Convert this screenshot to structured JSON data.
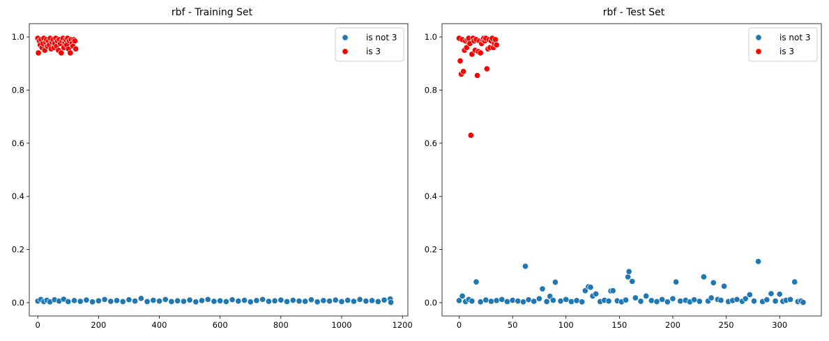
{
  "chart_data": [
    {
      "type": "scatter",
      "title": "rbf - Training Set",
      "xlabel": "",
      "ylabel": "",
      "xlim": [
        -28,
        1218
      ],
      "ylim": [
        -0.05,
        1.05
      ],
      "xticks": [
        0,
        200,
        400,
        600,
        800,
        1000,
        1200
      ],
      "yticks": [
        0.0,
        0.2,
        0.4,
        0.6,
        0.8,
        1.0
      ],
      "xtick_labels": [
        "0",
        "200",
        "400",
        "600",
        "800",
        "1000",
        "1200"
      ],
      "ytick_labels": [
        "0.0",
        "0.2",
        "0.4",
        "0.6",
        "0.8",
        "1.0"
      ],
      "grid": false,
      "legend_position": "top-right",
      "series": [
        {
          "name": "is not 3",
          "color": "#1f77b4",
          "x": [
            0,
            10,
            20,
            30,
            40,
            55,
            70,
            85,
            100,
            120,
            140,
            160,
            180,
            200,
            220,
            240,
            260,
            280,
            300,
            320,
            340,
            360,
            380,
            400,
            420,
            440,
            460,
            480,
            500,
            520,
            540,
            560,
            580,
            600,
            620,
            640,
            660,
            680,
            700,
            720,
            740,
            760,
            780,
            800,
            820,
            840,
            860,
            880,
            900,
            920,
            940,
            960,
            980,
            1000,
            1020,
            1040,
            1060,
            1080,
            1100,
            1120,
            1140,
            1160,
            1162
          ],
          "y": [
            0.006,
            0.012,
            0.004,
            0.009,
            0.003,
            0.011,
            0.006,
            0.013,
            0.004,
            0.008,
            0.005,
            0.01,
            0.003,
            0.007,
            0.012,
            0.005,
            0.008,
            0.004,
            0.011,
            0.006,
            0.016,
            0.004,
            0.009,
            0.006,
            0.012,
            0.004,
            0.007,
            0.005,
            0.01,
            0.003,
            0.008,
            0.012,
            0.005,
            0.007,
            0.004,
            0.011,
            0.006,
            0.009,
            0.003,
            0.008,
            0.012,
            0.005,
            0.007,
            0.01,
            0.004,
            0.009,
            0.006,
            0.005,
            0.011,
            0.003,
            0.008,
            0.006,
            0.01,
            0.004,
            0.009,
            0.005,
            0.012,
            0.006,
            0.008,
            0.004,
            0.01,
            0.014,
            0.001
          ]
        },
        {
          "name": "is 3",
          "color": "#ff0000",
          "x": [
            0,
            2,
            5,
            8,
            11,
            14,
            17,
            20,
            23,
            26,
            29,
            32,
            35,
            38,
            41,
            44,
            47,
            50,
            53,
            56,
            59,
            62,
            65,
            68,
            71,
            74,
            77,
            80,
            83,
            86,
            89,
            92,
            95,
            98,
            101,
            104,
            107,
            110,
            113,
            116,
            119,
            122,
            125
          ],
          "y": [
            0.995,
            0.94,
            0.985,
            0.97,
            0.99,
            0.96,
            0.975,
            0.995,
            0.95,
            0.98,
            0.99,
            0.965,
            0.985,
            0.97,
            0.995,
            0.955,
            0.98,
            0.99,
            0.96,
            0.975,
            0.995,
            0.965,
            0.985,
            0.95,
            0.99,
            0.975,
            0.94,
            0.985,
            0.995,
            0.96,
            0.98,
            0.99,
            0.97,
            0.995,
            0.955,
            0.985,
            0.94,
            0.99,
            0.975,
            0.965,
            0.99,
            0.985,
            0.955
          ]
        }
      ]
    },
    {
      "type": "scatter",
      "title": "rbf - Test Set",
      "xlabel": "",
      "ylabel": "",
      "xlim": [
        -16,
        339
      ],
      "ylim": [
        -0.05,
        1.05
      ],
      "xticks": [
        0,
        50,
        100,
        150,
        200,
        250,
        300
      ],
      "yticks": [
        0.0,
        0.2,
        0.4,
        0.6,
        0.8,
        1.0
      ],
      "xtick_labels": [
        "0",
        "50",
        "100",
        "150",
        "200",
        "250",
        "300"
      ],
      "ytick_labels": [
        "0.0",
        "0.2",
        "0.4",
        "0.6",
        "0.8",
        "1.0"
      ],
      "grid": false,
      "legend_position": "top-right",
      "series": [
        {
          "name": "is not 3",
          "color": "#1f77b4",
          "x": [
            0,
            3,
            6,
            9,
            12,
            16,
            20,
            25,
            30,
            35,
            40,
            45,
            50,
            55,
            60,
            62,
            65,
            70,
            75,
            78,
            82,
            85,
            88,
            90,
            95,
            100,
            105,
            110,
            115,
            118,
            121,
            123,
            125,
            128,
            132,
            136,
            140,
            142,
            144,
            148,
            152,
            156,
            158,
            159,
            162,
            165,
            170,
            175,
            180,
            185,
            190,
            195,
            200,
            203,
            207,
            212,
            216,
            220,
            225,
            229,
            233,
            236,
            238,
            242,
            245,
            248,
            252,
            256,
            260,
            265,
            268,
            272,
            276,
            280,
            284,
            288,
            292,
            296,
            300,
            303,
            306,
            310,
            314,
            317,
            320,
            322
          ],
          "y": [
            0.008,
            0.025,
            0.004,
            0.012,
            0.006,
            0.078,
            0.003,
            0.01,
            0.005,
            0.008,
            0.012,
            0.004,
            0.009,
            0.006,
            0.003,
            0.137,
            0.011,
            0.005,
            0.015,
            0.052,
            0.004,
            0.024,
            0.009,
            0.077,
            0.006,
            0.012,
            0.004,
            0.008,
            0.003,
            0.045,
            0.06,
            0.058,
            0.025,
            0.033,
            0.004,
            0.009,
            0.006,
            0.044,
            0.045,
            0.007,
            0.003,
            0.01,
            0.097,
            0.117,
            0.08,
            0.018,
            0.005,
            0.025,
            0.008,
            0.004,
            0.012,
            0.003,
            0.015,
            0.078,
            0.006,
            0.009,
            0.003,
            0.011,
            0.005,
            0.097,
            0.006,
            0.018,
            0.075,
            0.012,
            0.009,
            0.062,
            0.004,
            0.008,
            0.012,
            0.005,
            0.015,
            0.03,
            0.006,
            0.155,
            0.004,
            0.011,
            0.034,
            0.006,
            0.032,
            0.005,
            0.009,
            0.012,
            0.078,
            0.004,
            0.006,
            0.001
          ]
        },
        {
          "name": "is 3",
          "color": "#ff0000",
          "x": [
            0,
            1,
            2,
            3,
            4,
            5,
            6,
            7,
            8,
            9,
            10,
            11,
            12,
            13,
            14,
            15,
            16,
            17,
            18,
            19,
            20,
            21,
            22,
            23,
            24,
            25,
            26,
            27,
            28,
            29,
            30,
            31,
            32,
            33,
            34,
            35
          ],
          "y": [
            0.995,
            0.91,
            0.86,
            0.99,
            0.87,
            0.95,
            0.985,
            0.96,
            0.99,
            0.995,
            0.975,
            0.63,
            0.935,
            0.995,
            0.985,
            0.95,
            0.99,
            0.855,
            0.945,
            0.985,
            0.94,
            0.975,
            0.99,
            0.995,
            0.985,
            0.995,
            0.88,
            0.955,
            0.99,
            0.96,
            0.985,
            0.995,
            0.96,
            0.975,
            0.99,
            0.97
          ]
        }
      ]
    }
  ]
}
